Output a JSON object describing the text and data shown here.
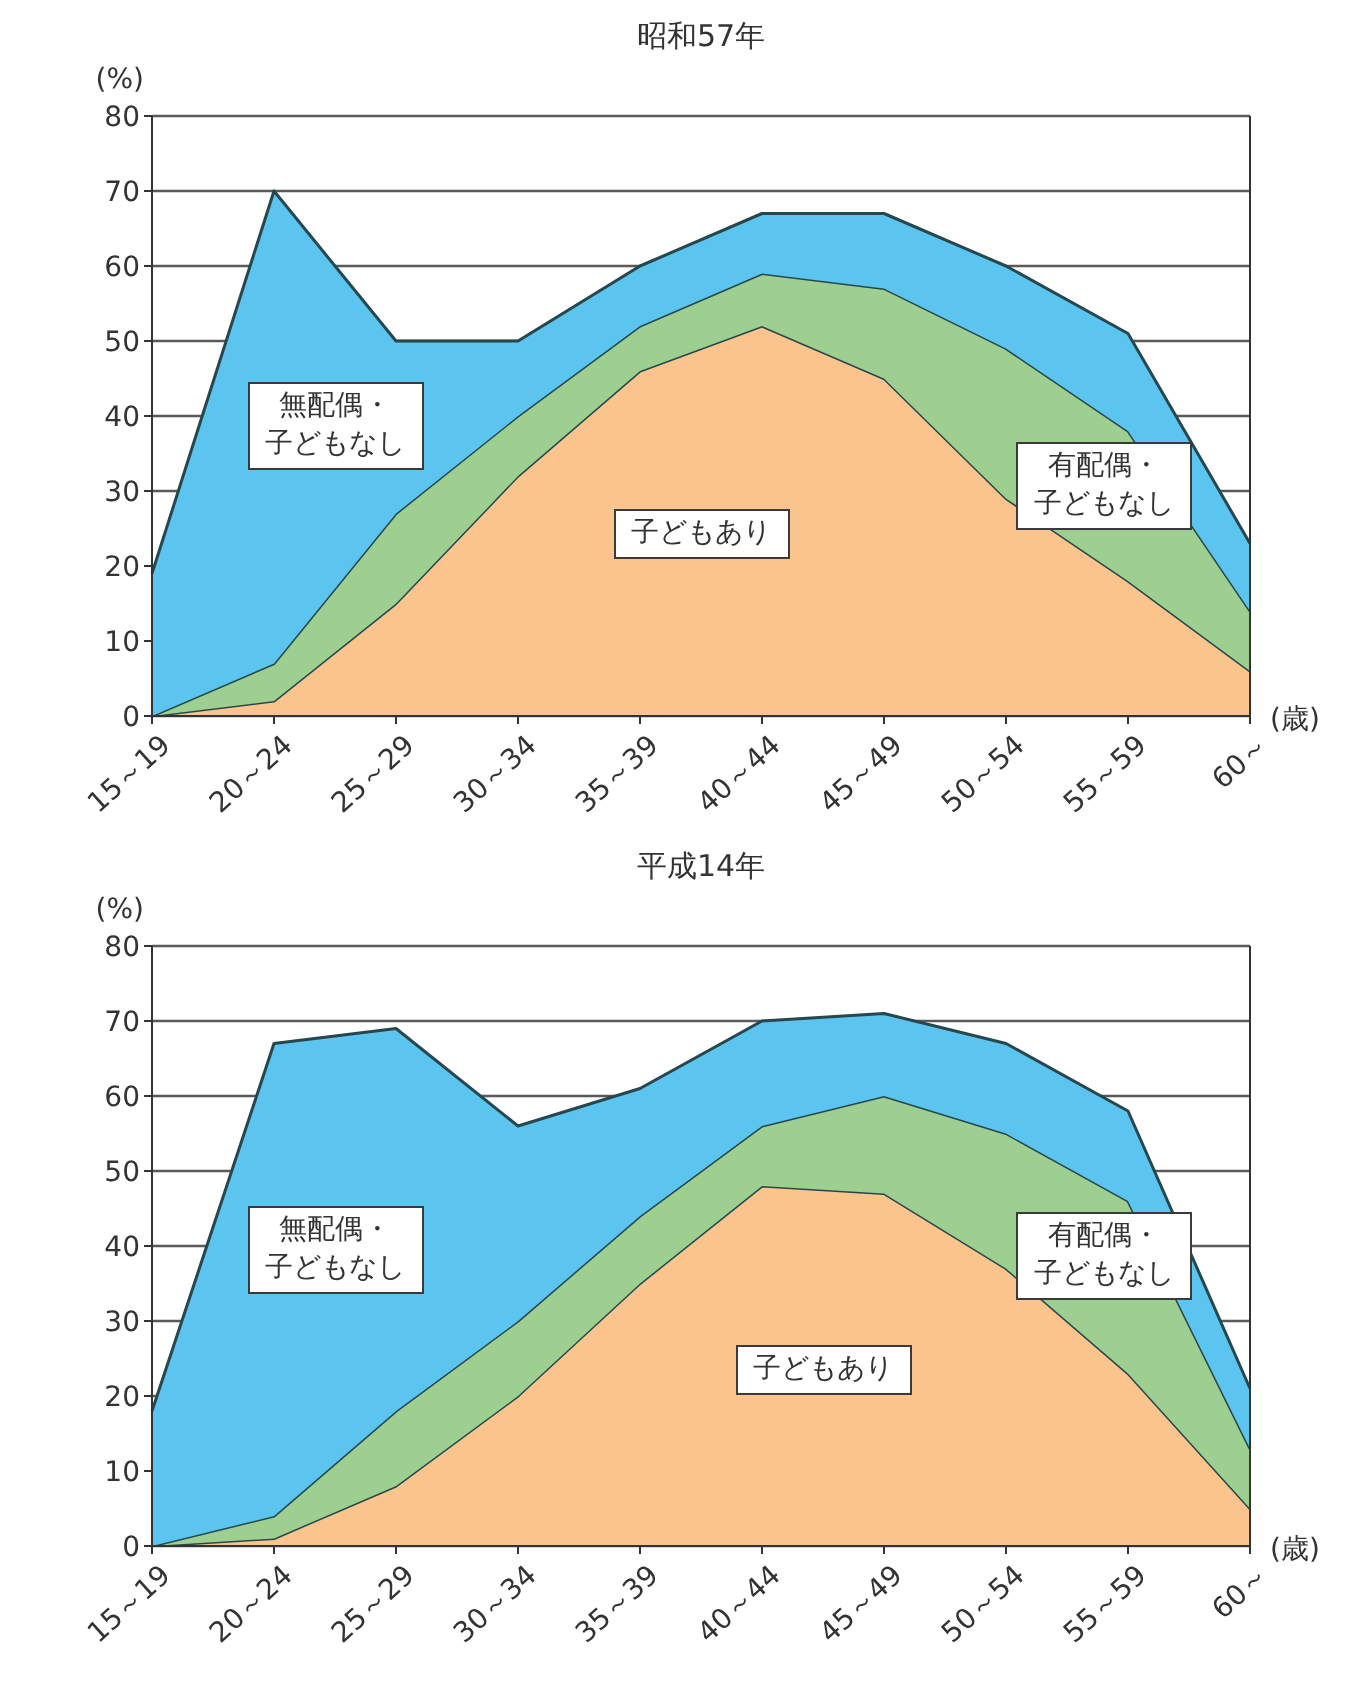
{
  "chart_data": [
    {
      "type": "area",
      "stacked": true,
      "title": "昭和57年",
      "xlabel": "(歳)",
      "ylabel": "(%)",
      "categories": [
        "15～19",
        "20～24",
        "25～29",
        "30～34",
        "35～39",
        "40～44",
        "45～49",
        "50～54",
        "55～59",
        "60～"
      ],
      "series": [
        {
          "name": "子どもあり",
          "color": "#fbc48c",
          "values": [
            0,
            2,
            15,
            32,
            46,
            52,
            45,
            29,
            18,
            6
          ]
        },
        {
          "name": "有配偶・子どもなし",
          "color": "#9ccf90",
          "values": [
            0,
            5,
            12,
            8,
            6,
            7,
            12,
            20,
            20,
            8
          ]
        },
        {
          "name": "無配偶・子どもなし",
          "color": "#5bc4ef",
          "values": [
            19,
            63,
            23,
            10,
            8,
            8,
            10,
            11,
            13,
            9
          ]
        }
      ],
      "ylim": [
        0,
        80
      ],
      "yticks": [
        0,
        10,
        20,
        30,
        40,
        50,
        60,
        70,
        80
      ],
      "grid": "y"
    },
    {
      "type": "area",
      "stacked": true,
      "title": "平成14年",
      "xlabel": "(歳)",
      "ylabel": "(%)",
      "categories": [
        "15～19",
        "20～24",
        "25～29",
        "30～34",
        "35～39",
        "40～44",
        "45～49",
        "50～54",
        "55～59",
        "60～"
      ],
      "series": [
        {
          "name": "子どもあり",
          "color": "#fbc48c",
          "values": [
            0,
            1,
            8,
            20,
            35,
            48,
            47,
            37,
            23,
            5
          ]
        },
        {
          "name": "有配偶・子どもなし",
          "color": "#9ccf90",
          "values": [
            0,
            3,
            10,
            10,
            9,
            8,
            13,
            18,
            23,
            8
          ]
        },
        {
          "name": "無配偶・子どもなし",
          "color": "#5bc4ef",
          "values": [
            18,
            63,
            51,
            26,
            17,
            14,
            11,
            12,
            12,
            8
          ]
        }
      ],
      "ylim": [
        0,
        80
      ],
      "yticks": [
        0,
        10,
        20,
        30,
        40,
        50,
        60,
        70,
        80
      ],
      "grid": "y"
    }
  ]
}
